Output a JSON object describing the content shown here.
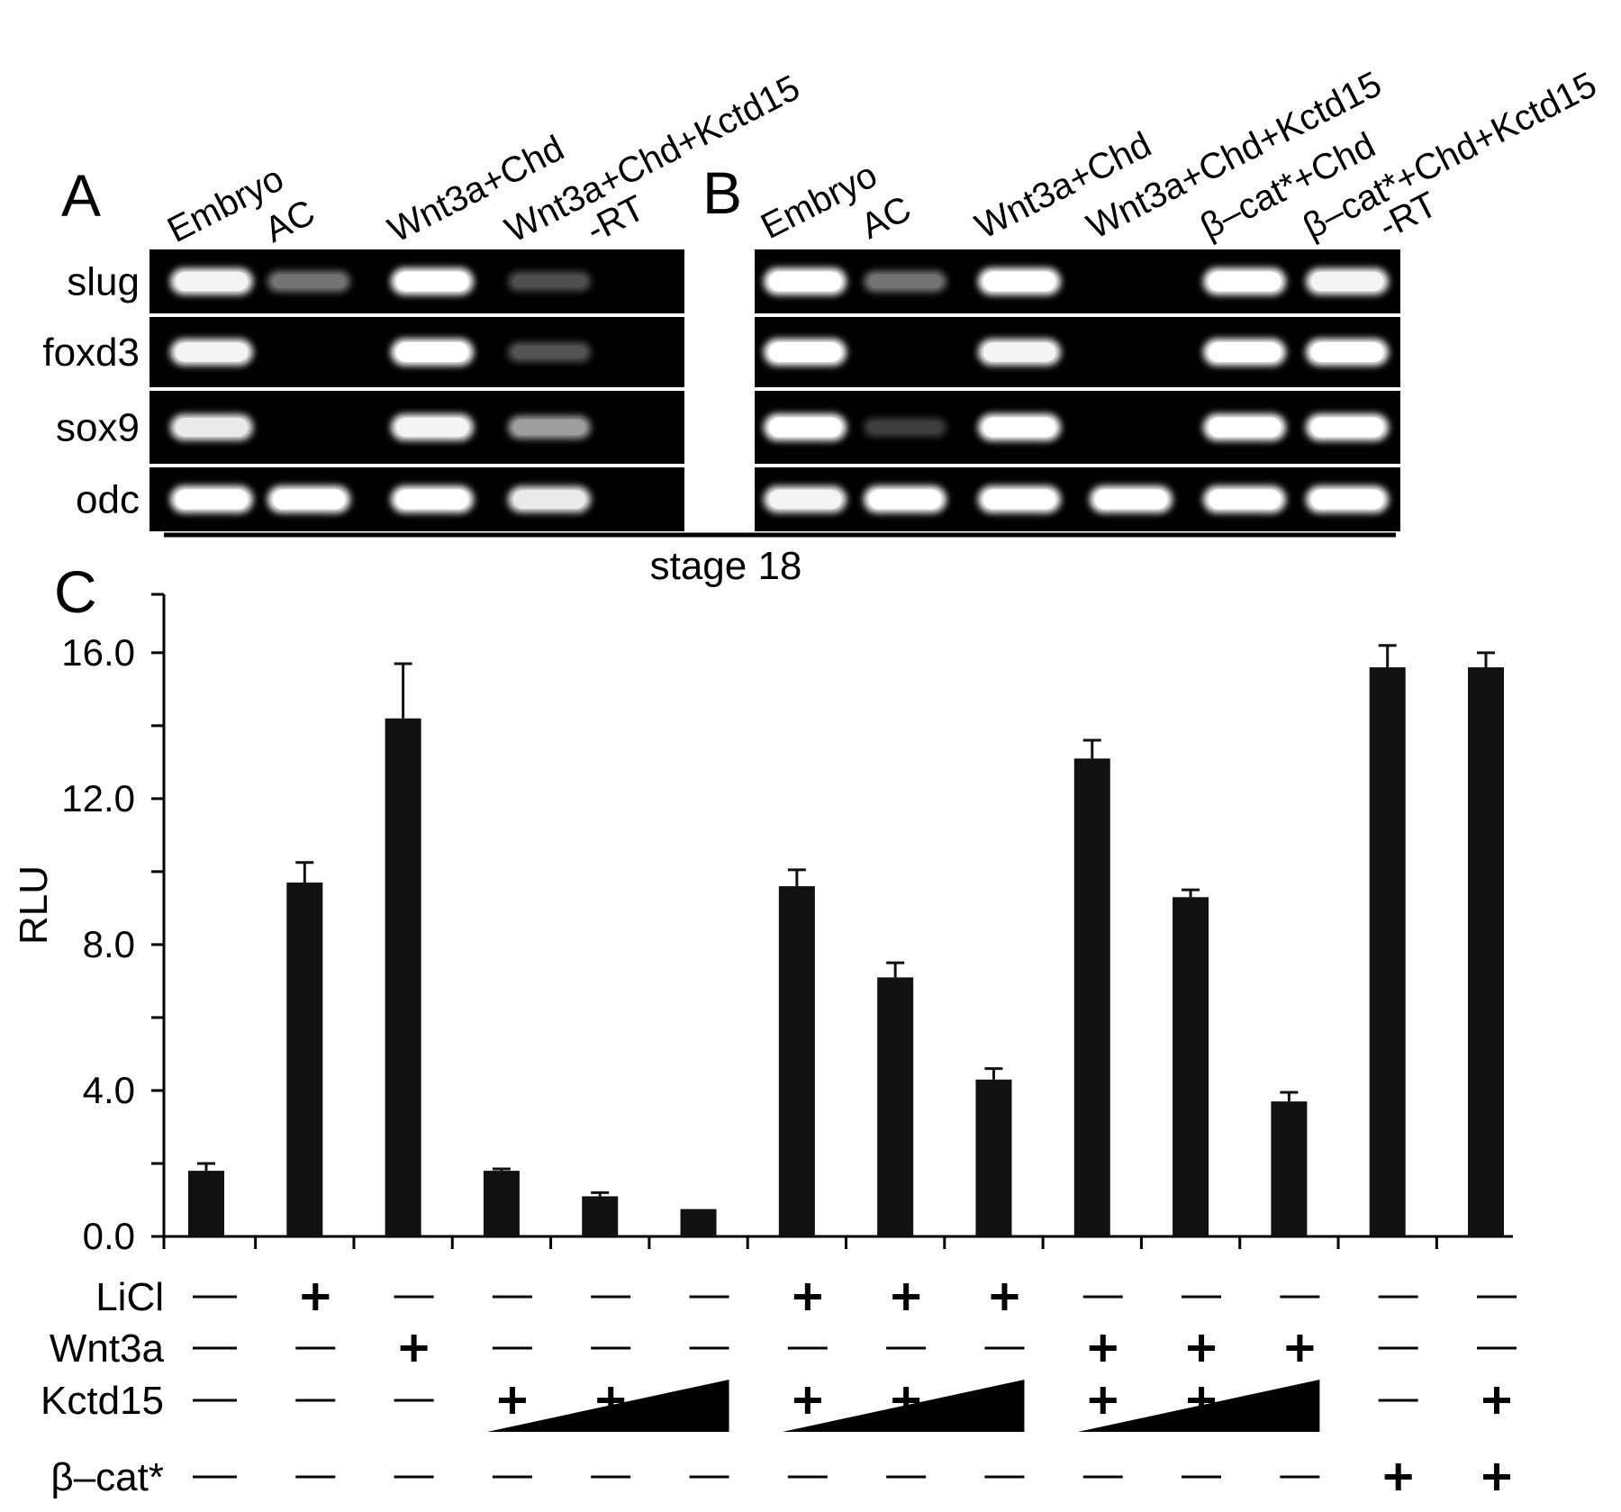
{
  "panels": {
    "a": {
      "letter": "A",
      "lanes": [
        "Embryo",
        "AC",
        "Wnt3a+Chd",
        "Wnt3a+Chd+Kctd15",
        "-RT"
      ],
      "genes": [
        "slug",
        "foxd3",
        "sox9",
        "odc"
      ],
      "band_intensity": [
        [
          0.95,
          0.35,
          1.0,
          0.18,
          0
        ],
        [
          0.95,
          0,
          1.0,
          0.2,
          0
        ],
        [
          0.9,
          0,
          0.95,
          0.55,
          0
        ],
        [
          1.0,
          1.0,
          1.0,
          0.9,
          0
        ]
      ]
    },
    "b": {
      "letter": "B",
      "lanes": [
        "Embryo",
        "AC",
        "Wnt3a+Chd",
        "Wnt3a+Chd+Kctd15",
        "β–cat*+Chd",
        "β–cat*+Chd+Kctd15",
        "-RT"
      ],
      "band_intensity": [
        [
          1.0,
          0.35,
          1.0,
          0,
          1.0,
          0.95,
          0
        ],
        [
          1.0,
          0,
          0.95,
          0,
          1.0,
          1.0,
          0
        ],
        [
          1.0,
          0.1,
          1.0,
          0,
          1.0,
          1.0,
          0
        ],
        [
          0.95,
          1.0,
          1.0,
          1.0,
          1.0,
          1.0,
          0
        ]
      ]
    },
    "stage_label": "stage 18",
    "c": {
      "letter": "C"
    }
  },
  "chart_data": {
    "type": "bar",
    "ylabel": "RLU",
    "ylim": [
      0,
      17.6
    ],
    "yticks": [
      0,
      4,
      8,
      12,
      16
    ],
    "ytick_labels": [
      "0.0",
      "4.0",
      "8.0",
      "12.0",
      "16.0"
    ],
    "values": [
      1.8,
      9.7,
      14.2,
      1.8,
      1.1,
      0.75,
      9.6,
      7.1,
      4.3,
      13.1,
      9.3,
      3.7,
      15.6,
      15.6
    ],
    "errors": [
      0.2,
      0.55,
      1.5,
      0.05,
      0.1,
      0,
      0.45,
      0.4,
      0.3,
      0.5,
      0.2,
      0.25,
      0.6,
      0.4
    ],
    "conditions": [
      {
        "name": "LiCl",
        "signs": [
          "—",
          "+",
          "—",
          "—",
          "—",
          "—",
          "+",
          "+",
          "+",
          "—",
          "—",
          "—",
          "—",
          "—"
        ]
      },
      {
        "name": "Wnt3a",
        "signs": [
          "—",
          "—",
          "+",
          "—",
          "—",
          "—",
          "—",
          "—",
          "—",
          "+",
          "+",
          "+",
          "—",
          "—"
        ]
      },
      {
        "name": "Kctd15",
        "signs": [
          "—",
          "—",
          "—",
          "+",
          "+",
          "+",
          "+",
          "+",
          "+",
          "+",
          "+",
          "+",
          "—",
          "+"
        ]
      },
      {
        "name": "β–cat*",
        "signs": [
          "—",
          "—",
          "—",
          "—",
          "—",
          "—",
          "—",
          "—",
          "—",
          "—",
          "—",
          "—",
          "+",
          "+"
        ]
      }
    ],
    "kctd15_dose_groups": [
      [
        3,
        5
      ],
      [
        6,
        8
      ],
      [
        9,
        11
      ]
    ]
  }
}
